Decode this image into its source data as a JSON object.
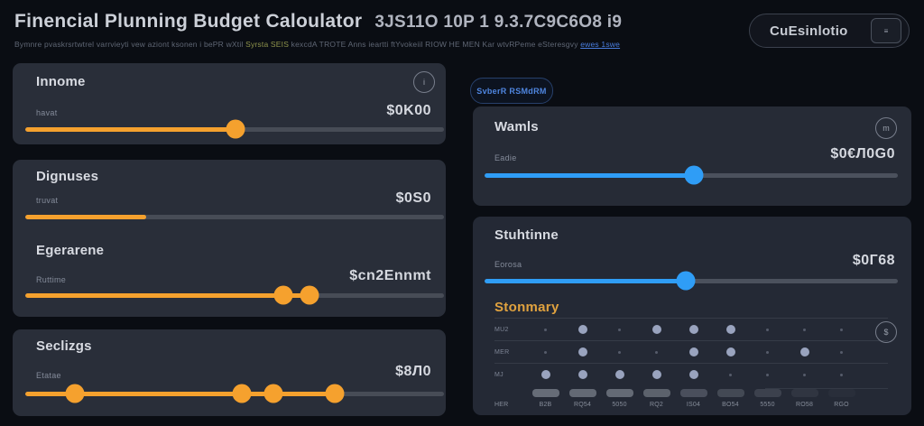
{
  "header": {
    "title": "Finencial Plunning Budget Caloulator",
    "title_suffix": "3JS11O 10P 1 9.3.7C9C6O8 i9",
    "subtitle_part1": "Bymnre pvaskrsrtwtrel varrvieyti vew aziont ksonen i bePR wXtil",
    "subtitle_highlight": "Syrsta SEIS",
    "subtitle_part2": "kexcdA TROTE Anns ieartti ftYvokeiil RIOW HE MEN Kar wtvRPeme eSteresgvy",
    "subtitle_link": "ewes 1swe",
    "action_button_label": "CuEsinlotio",
    "action_button_icon": "menu-icon"
  },
  "colors": {
    "orange": "#f5a12e",
    "blue": "#2f9df6"
  },
  "select_amount_button": "SvberR RSMdRM",
  "cards": {
    "income": {
      "title": "Innome",
      "label": "havat",
      "value": "$0K00",
      "slider": {
        "color": "orange",
        "fill_pct": 50.2,
        "thumbs": [
          50.2
        ]
      },
      "info_icon": "i"
    },
    "expenses": {
      "title": "Dignuses",
      "label": "truvat",
      "value": "$0S0",
      "slider": {
        "color": "orange",
        "fill_pct": 28.9,
        "thumbs": []
      }
    },
    "experience": {
      "title": "Egerarene",
      "label": "Ruttime",
      "value": "$cn2Ennmt",
      "slider": {
        "color": "orange",
        "fill_pct": 67.9,
        "thumbs": [
          61.6,
          67.9
        ]
      }
    },
    "savings": {
      "title": "Seclizgs",
      "label": "Etatae",
      "value": "$8Л0",
      "slider": {
        "color": "orange",
        "fill_pct": 73.9,
        "thumbs": [
          11.9,
          51.7,
          59.3,
          73.9
        ]
      }
    },
    "wants": {
      "title": "Wamls",
      "label": "Eadie",
      "value": "$0€Л0G0",
      "slider": {
        "color": "blue",
        "fill_pct": 50.7,
        "thumbs": [
          50.7
        ]
      },
      "info_icon": "m"
    },
    "savtime": {
      "title": "Stuhtinne",
      "label": "Eorosa",
      "value": "$0Г68",
      "slider": {
        "color": "blue",
        "fill_pct": 48.7,
        "thumbs": [
          48.7
        ]
      }
    }
  },
  "summary": {
    "title": "Stonmary",
    "rows": [
      {
        "label": "MU2",
        "dots": [
          0,
          1,
          0,
          1,
          1,
          1,
          0,
          0,
          0
        ]
      },
      {
        "label": "MER",
        "dots": [
          0,
          1,
          0,
          0,
          1,
          1,
          0,
          1,
          0
        ]
      },
      {
        "label": "MJ",
        "dots": [
          1,
          1,
          1,
          1,
          1,
          0,
          0,
          0,
          0
        ]
      }
    ],
    "chips": [
      0.95,
      0.9,
      0.92,
      0.8,
      0.55,
      0.45,
      0.35,
      0.18,
      0.08
    ],
    "tick_labels": [
      "HER",
      "B2B",
      "RQ54",
      "5050",
      "RQ2",
      "IS04",
      "BO54",
      "5550",
      "RO58",
      "RGO"
    ],
    "dollar_icon": "$"
  }
}
